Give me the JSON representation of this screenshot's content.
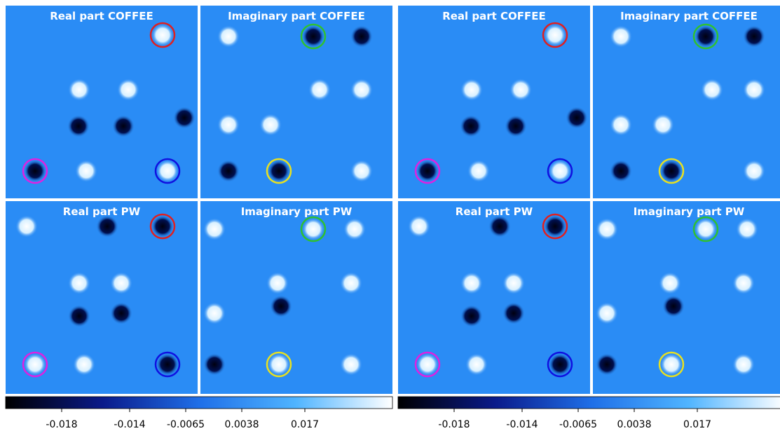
{
  "figures": [
    {
      "panels": [
        {
          "title": "Real part COFFEE"
        },
        {
          "title": "Imaginary part COFFEE"
        },
        {
          "title": "Real part PW"
        },
        {
          "title": "Imaginary part PW"
        }
      ],
      "colorbar": {
        "ticks": [
          "-0.018",
          "-0.014",
          "-0.0065",
          "0.0038",
          "0.017"
        ]
      }
    },
    {
      "panels": [
        {
          "title": "Real part COFFEE"
        },
        {
          "title": "Imaginary part COFFEE"
        },
        {
          "title": "Real part PW"
        },
        {
          "title": "Imaginary part PW"
        }
      ],
      "colorbar": {
        "ticks": [
          "-0.018",
          "-0.014",
          "-0.0065",
          "0.0038",
          "0.017"
        ]
      }
    }
  ]
}
